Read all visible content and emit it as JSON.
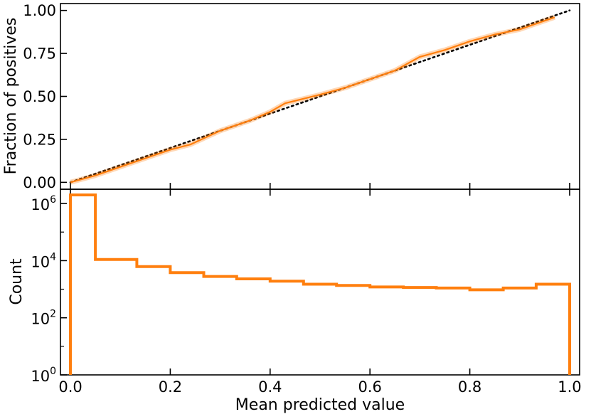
{
  "chart_data": [
    {
      "type": "line",
      "panel": "top",
      "xlim": [
        -0.02,
        1.02
      ],
      "ylim": [
        -0.04,
        1.04
      ],
      "yticks": [
        0.0,
        0.25,
        0.5,
        0.75,
        1.0
      ],
      "ytick_labels": [
        "0.00",
        "0.25",
        "0.50",
        "0.75",
        "1.00"
      ],
      "ylabel": "Fraction of positives",
      "grid": false,
      "series": [
        {
          "color": "#ff7f0e",
          "style": "solid",
          "x": [
            0.0,
            0.05,
            0.1,
            0.15,
            0.2,
            0.24,
            0.3,
            0.36,
            0.4,
            0.43,
            0.5,
            0.55,
            0.6,
            0.65,
            0.7,
            0.75,
            0.8,
            0.85,
            0.9,
            0.93,
            0.97
          ],
          "y": [
            0.0,
            0.04,
            0.09,
            0.14,
            0.19,
            0.22,
            0.3,
            0.36,
            0.41,
            0.46,
            0.51,
            0.55,
            0.6,
            0.65,
            0.73,
            0.77,
            0.82,
            0.86,
            0.89,
            0.92,
            0.96
          ]
        },
        {
          "color": "#000000",
          "style": "dotted",
          "x": [
            0.0,
            1.0
          ],
          "y": [
            0.0,
            1.0
          ]
        }
      ]
    },
    {
      "type": "step",
      "panel": "bottom",
      "xlim": [
        -0.02,
        1.02
      ],
      "ylim_log10": [
        0,
        6.5
      ],
      "yscale": "log",
      "xticks": [
        0.0,
        0.2,
        0.4,
        0.6,
        0.8,
        1.0
      ],
      "xtick_labels": [
        "0.0",
        "0.2",
        "0.4",
        "0.6",
        "0.8",
        "1.0"
      ],
      "yticks_log10": [
        0,
        2,
        4,
        6
      ],
      "ytick_base": "10",
      "ytick_exponents": [
        "0",
        "2",
        "4",
        "6"
      ],
      "xlabel": "Mean predicted value",
      "ylabel": "Count",
      "grid": false,
      "color": "#ff7f0e",
      "bin_edges": [
        0.0,
        0.05,
        0.133,
        0.2,
        0.267,
        0.333,
        0.4,
        0.467,
        0.533,
        0.6,
        0.667,
        0.733,
        0.8,
        0.867,
        0.933,
        1.0
      ],
      "counts": [
        2000000,
        11000,
        6200,
        3800,
        2800,
        2300,
        1900,
        1500,
        1350,
        1200,
        1150,
        1100,
        950,
        1100,
        1500
      ]
    }
  ]
}
